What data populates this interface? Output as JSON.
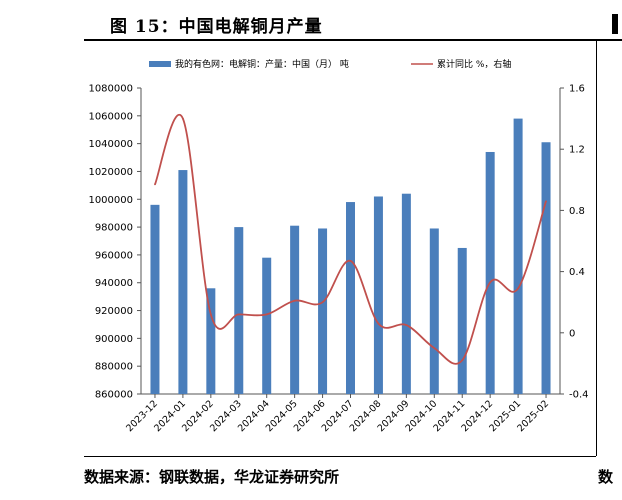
{
  "figure": {
    "title": "图 15：中国电解铜月产量",
    "source": "数据来源：钢联数据，华龙证券研究所",
    "source_right_fragment": "数"
  },
  "chart_data": {
    "type": "bar+line",
    "categories": [
      "2023-12",
      "2024-01",
      "2024-02",
      "2024-03",
      "2024-04",
      "2024-05",
      "2024-06",
      "2024-07",
      "2024-08",
      "2024-09",
      "2024-10",
      "2024-11",
      "2024-12",
      "2025-01",
      "2025-02"
    ],
    "series": [
      {
        "name": "我的有色网：电解铜：产量：中国（月）  吨",
        "type": "bar",
        "axis": "left",
        "color": "#4a7ebb",
        "values": [
          996000,
          1021000,
          936000,
          980000,
          958000,
          981000,
          979000,
          998000,
          1002000,
          1004000,
          979000,
          965000,
          1034000,
          1058000,
          1041000
        ]
      },
      {
        "name": "累计同比 %，右轴",
        "type": "line",
        "axis": "right",
        "color": "#c0504d",
        "values": [
          0.97,
          1.4,
          0.12,
          0.12,
          0.12,
          0.21,
          0.2,
          0.47,
          0.06,
          0.05,
          -0.1,
          -0.18,
          0.33,
          0.29,
          0.86
        ]
      }
    ],
    "y_left": {
      "min": 860000,
      "max": 1080000,
      "ticks": [
        "860000",
        "880000",
        "900000",
        "920000",
        "940000",
        "960000",
        "980000",
        "1000000",
        "1020000",
        "1040000",
        "1060000",
        "1080000"
      ]
    },
    "y_right": {
      "min": -0.4,
      "max": 1.6,
      "ticks": [
        "-0.4",
        "0",
        "0.4",
        "0.8",
        "1.2",
        "1.6"
      ]
    },
    "legend_position": "top",
    "grid": false
  }
}
